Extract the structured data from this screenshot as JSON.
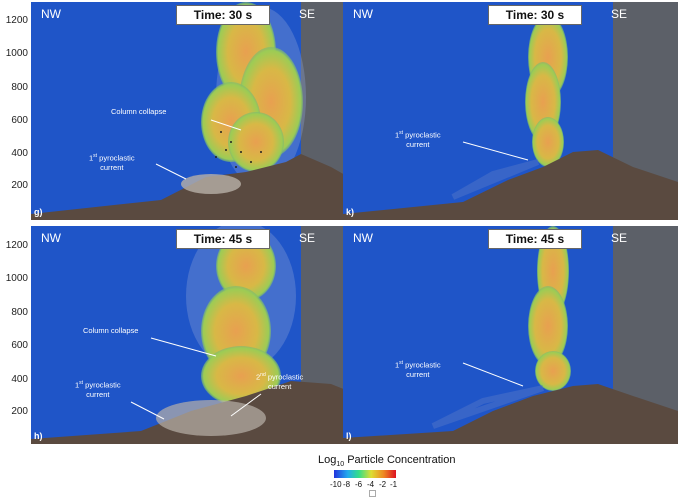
{
  "y_ticks": [
    "1200",
    "1000",
    "800",
    "600",
    "400",
    "200"
  ],
  "panels": [
    {
      "id": "g",
      "time": "Time: 30 s",
      "nw": "NW",
      "se": "SE",
      "label": "g)"
    },
    {
      "id": "k",
      "time": "Time: 30 s",
      "nw": "NW",
      "se": "SE",
      "label": "k)"
    },
    {
      "id": "h",
      "time": "Time: 45 s",
      "nw": "NW",
      "se": "SE",
      "label": "h)"
    },
    {
      "id": "l",
      "time": "Time: 45 s",
      "nw": "NW",
      "se": "SE",
      "label": "l)"
    }
  ],
  "annotations": {
    "g_collapse": "Column collapse",
    "g_pc_num": "1",
    "g_pc_sup": "st",
    "g_pc_a": " pyroclastic",
    "g_pc_b": "current",
    "k_pc_num": "1",
    "k_pc_sup": "st",
    "k_pc_a": " pyroclastic",
    "k_pc_b": "current",
    "h_collapse": "Column collapse",
    "h_pc1_num": "1",
    "h_pc1_sup": "st",
    "h_pc1_a": " pyroclastic",
    "h_pc1_b": "current",
    "h_pc2_num": "2",
    "h_pc2_sup": "nd",
    "h_pc2_a": " pyroclastic",
    "h_pc2_b": "current",
    "l_pc_num": "1",
    "l_pc_sup": "st",
    "l_pc_a": " pyroclastic",
    "l_pc_b": "current"
  },
  "colorbar": {
    "title_main": "Log",
    "title_sub": "10",
    "title_rest": " Particle Concentration",
    "ticks": [
      "-10",
      "-8",
      "-6",
      "-4",
      "-2",
      "-1"
    ]
  },
  "colors": {
    "sky": "#1f55c8",
    "ground": "#5a4a40",
    "wall": "#5c6068"
  }
}
